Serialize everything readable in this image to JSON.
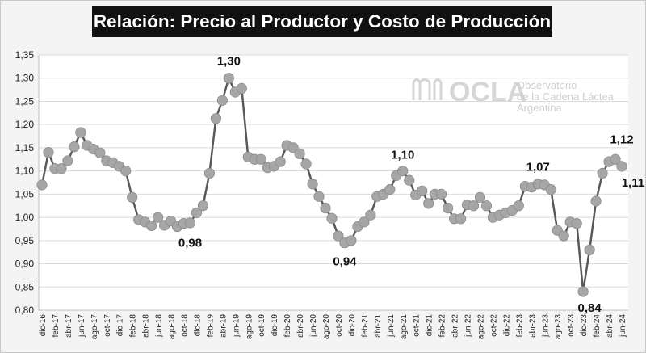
{
  "chart_data": {
    "type": "line",
    "title": "Relación: Precio al Productor y Costo de Producción",
    "xlabel": "",
    "ylabel": "",
    "ylim": [
      0.8,
      1.35
    ],
    "y_ticks": [
      "0,80",
      "0,85",
      "0,90",
      "0,95",
      "1,00",
      "1,05",
      "1,10",
      "1,15",
      "1,20",
      "1,25",
      "1,30",
      "1,35"
    ],
    "grid": true,
    "legend": "none",
    "line_color": "#595959",
    "marker_color": "#a6a6a6",
    "x_tick_labels": [
      "dic-16",
      "feb-17",
      "abr-17",
      "jun-17",
      "ago-17",
      "oct-17",
      "dic-17",
      "feb-18",
      "abr-18",
      "jun-18",
      "ago-18",
      "oct-18",
      "dic-18",
      "feb-19",
      "abr-19",
      "jun-19",
      "ago-19",
      "oct-19",
      "dic-19",
      "feb-20",
      "abr-20",
      "jun-20",
      "ago-20",
      "oct-20",
      "dic-20",
      "feb-21",
      "abr-21",
      "jun-21",
      "ago-21",
      "oct-21",
      "dic-21",
      "feb-22",
      "abr-22",
      "jun-22",
      "ago-22",
      "oct-22",
      "dic-22",
      "feb-23",
      "abr-23",
      "jun-23",
      "ago-23",
      "oct-23",
      "dic-23",
      "feb-24",
      "abr-24",
      "jun-24"
    ],
    "values": [
      1.07,
      1.14,
      1.105,
      1.105,
      1.122,
      1.152,
      1.183,
      1.155,
      1.147,
      1.139,
      1.122,
      1.118,
      1.11,
      1.1,
      1.043,
      0.995,
      0.99,
      0.982,
      1.0,
      0.983,
      0.992,
      0.98,
      0.987,
      0.988,
      1.01,
      1.025,
      1.095,
      1.213,
      1.252,
      1.3,
      1.27,
      1.278,
      1.13,
      1.125,
      1.125,
      1.107,
      1.11,
      1.12,
      1.155,
      1.15,
      1.137,
      1.115,
      1.072,
      1.045,
      1.02,
      0.998,
      0.96,
      0.945,
      0.95,
      0.98,
      0.99,
      1.005,
      1.045,
      1.05,
      1.06,
      1.09,
      1.1,
      1.08,
      1.048,
      1.057,
      1.03,
      1.05,
      1.05,
      1.02,
      0.997,
      0.997,
      1.027,
      1.025,
      1.043,
      1.025,
      1.0,
      1.005,
      1.01,
      1.015,
      1.025,
      1.067,
      1.065,
      1.072,
      1.07,
      1.06,
      0.972,
      0.96,
      0.99,
      0.987,
      0.84,
      0.93,
      1.035,
      1.095,
      1.12,
      1.125,
      1.11
    ],
    "annotations": [
      {
        "index": 29,
        "label": "1,30"
      },
      {
        "index": 21,
        "label": "0,98"
      },
      {
        "index": 56,
        "label": "1,10"
      },
      {
        "index": 47,
        "label": "0,94"
      },
      {
        "index": 77,
        "label": "1,07"
      },
      {
        "index": 84,
        "label": "0,84"
      },
      {
        "index": 89,
        "label": "1,12"
      },
      {
        "index": 90,
        "label": "1,11"
      }
    ]
  },
  "watermark": {
    "logo_text": "OCLA",
    "line1": "Observatorio",
    "line2": "de la Cadena Láctea",
    "line3": "Argentina"
  }
}
